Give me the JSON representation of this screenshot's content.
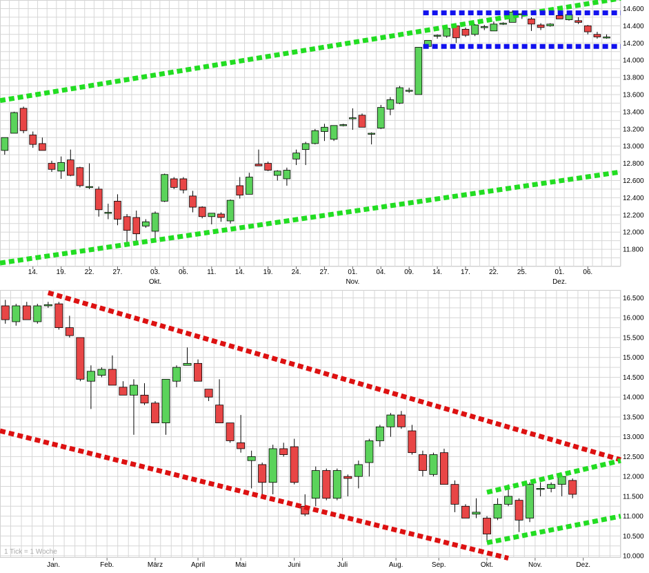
{
  "colors": {
    "up": "#5bd35b",
    "down": "#e84646",
    "wick": "#000000",
    "grid": "#d6d6d6",
    "trend_green": "#22dd22",
    "trend_red": "#dd1111",
    "range_blue": "#1111ee"
  },
  "chart_data": [
    {
      "type": "candlestick",
      "title": "",
      "ylim": [
        11600,
        14700
      ],
      "y_ticks": [
        "11.800",
        "12.000",
        "12.200",
        "12.400",
        "12.600",
        "12.800",
        "13.000",
        "13.200",
        "13.400",
        "13.600",
        "13.800",
        "14.000",
        "14.200",
        "14.400",
        "14.600"
      ],
      "y_tick_values": [
        11800,
        12000,
        12200,
        12400,
        12600,
        12800,
        13000,
        13200,
        13400,
        13600,
        13800,
        14000,
        14200,
        14400,
        14600
      ],
      "x_ticks": [
        {
          "label": "14.",
          "month": "",
          "i": 3
        },
        {
          "label": "19.",
          "month": "",
          "i": 6
        },
        {
          "label": "22.",
          "month": "",
          "i": 9
        },
        {
          "label": "27.",
          "month": "",
          "i": 12
        },
        {
          "label": "03.",
          "month": "Okt.",
          "i": 16
        },
        {
          "label": "06.",
          "month": "",
          "i": 19
        },
        {
          "label": "11.",
          "month": "",
          "i": 22
        },
        {
          "label": "14.",
          "month": "",
          "i": 25
        },
        {
          "label": "19.",
          "month": "",
          "i": 28
        },
        {
          "label": "24.",
          "month": "",
          "i": 31
        },
        {
          "label": "27.",
          "month": "",
          "i": 34
        },
        {
          "label": "01.",
          "month": "Nov.",
          "i": 37
        },
        {
          "label": "04.",
          "month": "",
          "i": 40
        },
        {
          "label": "09.",
          "month": "",
          "i": 43
        },
        {
          "label": "14.",
          "month": "",
          "i": 46
        },
        {
          "label": "17.",
          "month": "",
          "i": 49
        },
        {
          "label": "22.",
          "month": "",
          "i": 52
        },
        {
          "label": "25.",
          "month": "",
          "i": 55
        },
        {
          "label": "01.",
          "month": "Dez.",
          "i": 59
        },
        {
          "label": "06.",
          "month": "",
          "i": 62
        }
      ],
      "candles": [
        [
          12950,
          13100,
          12900,
          13100
        ],
        [
          13150,
          13400,
          13150,
          13390
        ],
        [
          13440,
          13460,
          13150,
          13180
        ],
        [
          13130,
          13170,
          12980,
          13020
        ],
        [
          13030,
          13100,
          12950,
          12950
        ],
        [
          12800,
          12830,
          12700,
          12730
        ],
        [
          12710,
          12880,
          12620,
          12810
        ],
        [
          12840,
          12960,
          12650,
          12660
        ],
        [
          12750,
          12760,
          12520,
          12540
        ],
        [
          12530,
          12800,
          12500,
          12530
        ],
        [
          12500,
          12530,
          12180,
          12260
        ],
        [
          12230,
          12330,
          12150,
          12230
        ],
        [
          12360,
          12440,
          12080,
          12150
        ],
        [
          12180,
          12210,
          11850,
          12020
        ],
        [
          12170,
          12250,
          11900,
          11980
        ],
        [
          12070,
          12150,
          12050,
          12120
        ],
        [
          12010,
          12240,
          11920,
          12220
        ],
        [
          12360,
          12680,
          12350,
          12670
        ],
        [
          12620,
          12640,
          12500,
          12520
        ],
        [
          12620,
          12640,
          12450,
          12490
        ],
        [
          12420,
          12480,
          12230,
          12290
        ],
        [
          12290,
          12300,
          12160,
          12180
        ],
        [
          12180,
          12220,
          12090,
          12220
        ],
        [
          12210,
          12230,
          12120,
          12170
        ],
        [
          12130,
          12380,
          12100,
          12370
        ],
        [
          12540,
          12640,
          12390,
          12430
        ],
        [
          12440,
          12690,
          12440,
          12640
        ],
        [
          12790,
          12960,
          12770,
          12770
        ],
        [
          12800,
          12820,
          12710,
          12720
        ],
        [
          12660,
          12720,
          12600,
          12710
        ],
        [
          12620,
          12750,
          12540,
          12720
        ],
        [
          12850,
          12960,
          12780,
          12920
        ],
        [
          12960,
          13050,
          12780,
          13030
        ],
        [
          13030,
          13200,
          13020,
          13180
        ],
        [
          13170,
          13260,
          13060,
          13220
        ],
        [
          13080,
          13230,
          13060,
          13240
        ],
        [
          13250,
          13260,
          13230,
          13250
        ],
        [
          13320,
          13440,
          13190,
          13330
        ],
        [
          13360,
          13380,
          13230,
          13220
        ],
        [
          13150,
          13160,
          13020,
          13150
        ],
        [
          13210,
          13480,
          13200,
          13450
        ],
        [
          13430,
          13570,
          13360,
          13540
        ],
        [
          13500,
          13700,
          13490,
          13680
        ],
        [
          13640,
          13680,
          13620,
          13650
        ],
        [
          13600,
          14150,
          13600,
          14150
        ],
        [
          14160,
          14230,
          14150,
          14230
        ],
        [
          14290,
          14300,
          14250,
          14290
        ],
        [
          14280,
          14380,
          14260,
          14370
        ],
        [
          14400,
          14410,
          14200,
          14260
        ],
        [
          14360,
          14380,
          14270,
          14290
        ],
        [
          14300,
          14420,
          14280,
          14410
        ],
        [
          14380,
          14410,
          14350,
          14390
        ],
        [
          14340,
          14450,
          14340,
          14420
        ],
        [
          14420,
          14440,
          14410,
          14430
        ],
        [
          14440,
          14580,
          14440,
          14560
        ],
        [
          14540,
          14560,
          14480,
          14540
        ],
        [
          14480,
          14500,
          14340,
          14420
        ],
        [
          14410,
          14430,
          14350,
          14380
        ],
        [
          14400,
          14430,
          14390,
          14420
        ],
        [
          14520,
          14560,
          14480,
          14480
        ],
        [
          14470,
          14560,
          14460,
          14530
        ],
        [
          14460,
          14500,
          14420,
          14440
        ],
        [
          14400,
          14410,
          14300,
          14330
        ],
        [
          14300,
          14330,
          14250,
          14270
        ],
        [
          14270,
          14300,
          14250,
          14270
        ]
      ],
      "trendlines": [
        {
          "kind": "green",
          "from": [
            -0.5,
            13530
          ],
          "to": [
            65.5,
            14720
          ]
        },
        {
          "kind": "green",
          "from": [
            -0.5,
            11640
          ],
          "to": [
            65.5,
            12700
          ]
        },
        {
          "kind": "blue",
          "from": [
            44.5,
            14550
          ],
          "to": [
            65.5,
            14550
          ]
        },
        {
          "kind": "blue",
          "from": [
            44.5,
            14160
          ],
          "to": [
            65.5,
            14160
          ]
        }
      ]
    },
    {
      "type": "candlestick",
      "title": "",
      "ylim": [
        9950,
        16700
      ],
      "y_ticks": [
        "10.000",
        "10.500",
        "11.000",
        "11.500",
        "12.000",
        "12.500",
        "13.000",
        "13.500",
        "14.000",
        "14.500",
        "15.000",
        "15.500",
        "16.000",
        "16.500"
      ],
      "y_tick_values": [
        10000,
        10500,
        11000,
        11500,
        12000,
        12500,
        13000,
        13500,
        14000,
        14500,
        15000,
        15500,
        16000,
        16500
      ],
      "x_ticks": [
        {
          "label": "Jan.",
          "i": 4.5
        },
        {
          "label": "Feb.",
          "i": 9.5
        },
        {
          "label": "März",
          "i": 14
        },
        {
          "label": "April",
          "i": 18
        },
        {
          "label": "Mai",
          "i": 22
        },
        {
          "label": "Juni",
          "i": 27
        },
        {
          "label": "Juli",
          "i": 31.5
        },
        {
          "label": "Aug.",
          "i": 36.5
        },
        {
          "label": "Sep.",
          "i": 40.5
        },
        {
          "label": "Okt.",
          "i": 45
        },
        {
          "label": "Nov.",
          "i": 49.5
        },
        {
          "label": "Dez.",
          "i": 54
        }
      ],
      "candles": [
        [
          16300,
          16450,
          15850,
          15950
        ],
        [
          15900,
          16350,
          15800,
          16300
        ],
        [
          16300,
          16400,
          15950,
          15950
        ],
        [
          15900,
          16350,
          15850,
          16300
        ],
        [
          16300,
          16400,
          16250,
          16330
        ],
        [
          16350,
          16400,
          15700,
          15750
        ],
        [
          15750,
          16050,
          15500,
          15550
        ],
        [
          15500,
          15500,
          14400,
          14450
        ],
        [
          14400,
          14800,
          13700,
          14650
        ],
        [
          14550,
          14750,
          14500,
          14700
        ],
        [
          14700,
          15050,
          14300,
          14300
        ],
        [
          14250,
          14400,
          14100,
          14050
        ],
        [
          14050,
          14450,
          13050,
          14300
        ],
        [
          14050,
          14350,
          13800,
          13850
        ],
        [
          13850,
          13900,
          13350,
          13350
        ],
        [
          13350,
          14450,
          13050,
          14450
        ],
        [
          14400,
          14800,
          14250,
          14750
        ],
        [
          14800,
          15250,
          14800,
          14850
        ],
        [
          14850,
          14950,
          14400,
          14400
        ],
        [
          14200,
          14200,
          13900,
          14000
        ],
        [
          13800,
          14450,
          13350,
          13350
        ],
        [
          13350,
          13350,
          12850,
          12900
        ],
        [
          12850,
          13550,
          12600,
          12700
        ],
        [
          12400,
          12650,
          11700,
          12500
        ],
        [
          12300,
          12350,
          11550,
          11850
        ],
        [
          11850,
          12800,
          11550,
          12700
        ],
        [
          12700,
          12850,
          12500,
          12550
        ],
        [
          12750,
          12950,
          11800,
          11850
        ],
        [
          11250,
          11550,
          11000,
          11050
        ],
        [
          11450,
          12250,
          11250,
          12150
        ],
        [
          12150,
          12200,
          11400,
          11450
        ],
        [
          11450,
          12200,
          11400,
          12150
        ],
        [
          12000,
          12050,
          11500,
          11950
        ],
        [
          12000,
          12400,
          11700,
          12300
        ],
        [
          12350,
          12950,
          12000,
          12900
        ],
        [
          12900,
          13300,
          12750,
          13250
        ],
        [
          13250,
          13600,
          13000,
          13550
        ],
        [
          13550,
          13650,
          13200,
          13250
        ],
        [
          13150,
          13300,
          12550,
          12600
        ],
        [
          12550,
          12650,
          12000,
          12150
        ],
        [
          12050,
          12600,
          12000,
          12550
        ],
        [
          12600,
          12700,
          11850,
          11800
        ],
        [
          11800,
          11900,
          11100,
          11300
        ],
        [
          11250,
          11300,
          10950,
          10950
        ],
        [
          11050,
          11450,
          10950,
          11100
        ],
        [
          10950,
          11000,
          10350,
          10550
        ],
        [
          10950,
          11450,
          10900,
          11300
        ],
        [
          11300,
          11800,
          11250,
          11500
        ],
        [
          11400,
          11450,
          10600,
          10900
        ],
        [
          10950,
          11850,
          10850,
          11800
        ],
        [
          11700,
          11850,
          11500,
          11700
        ],
        [
          11700,
          11850,
          11600,
          11800
        ],
        [
          11800,
          12050,
          11500,
          12000
        ],
        [
          11900,
          11950,
          11450,
          11550
        ]
      ],
      "trendlines": [
        {
          "kind": "red",
          "from": [
            4,
            16630
          ],
          "to": [
            57.5,
            12420
          ]
        },
        {
          "kind": "red",
          "from": [
            -0.5,
            13150
          ],
          "to": [
            47,
            9940
          ]
        },
        {
          "kind": "green",
          "from": [
            45,
            11600
          ],
          "to": [
            57.5,
            12400
          ]
        },
        {
          "kind": "green",
          "from": [
            45,
            10330
          ],
          "to": [
            57.5,
            11000
          ]
        }
      ]
    }
  ],
  "footnote": "1 Tick = 1 Woche"
}
